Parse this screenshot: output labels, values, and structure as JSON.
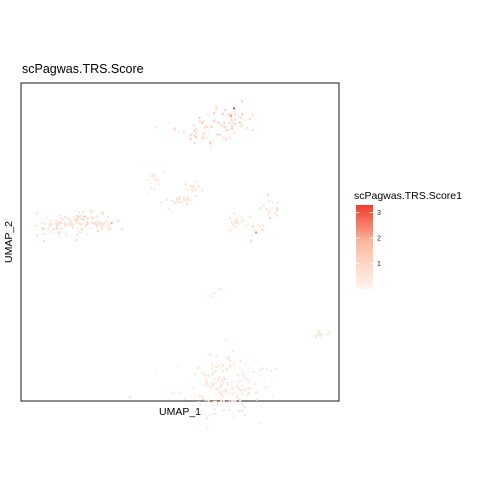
{
  "chart_data": {
    "type": "scatter",
    "title": "scPagwas.TRS.Score",
    "xlabel": "UMAP_1",
    "ylabel": "UMAP_2",
    "xlim": [
      -10,
      10
    ],
    "ylim": [
      -10,
      10
    ],
    "grid": false,
    "legend": {
      "title": "scPagwas.TRS.Score1",
      "position": "right",
      "ticks": [
        1,
        2,
        3
      ],
      "range": [
        0,
        3.3
      ],
      "color_low": "#fff5f0",
      "color_high": "#ef3b2c"
    },
    "clusters": [
      {
        "name": "c1",
        "center": [
          -6.2,
          1.3
        ],
        "spread": [
          0.9,
          0.35
        ],
        "n": 70,
        "score": [
          0.2,
          1.2
        ]
      },
      {
        "name": "c2",
        "center": [
          -7.9,
          0.9
        ],
        "spread": [
          0.7,
          0.35
        ],
        "n": 45,
        "score": [
          0.2,
          1.0
        ]
      },
      {
        "name": "c3",
        "center": [
          -4.8,
          1.1
        ],
        "spread": [
          0.4,
          0.25
        ],
        "n": 18,
        "score": [
          0.2,
          0.9
        ]
      },
      {
        "name": "c4",
        "center": [
          1.3,
          6.8
        ],
        "spread": [
          0.8,
          0.35
        ],
        "n": 35,
        "score": [
          0.2,
          1.4
        ]
      },
      {
        "name": "c5",
        "center": [
          3.0,
          7.6
        ],
        "spread": [
          0.9,
          0.45
        ],
        "n": 55,
        "score": [
          0.2,
          1.6
        ]
      },
      {
        "name": "c6",
        "center": [
          -1.9,
          3.9
        ],
        "spread": [
          0.4,
          0.3
        ],
        "n": 16,
        "score": [
          0.1,
          0.8
        ]
      },
      {
        "name": "c7",
        "center": [
          -0.3,
          2.5
        ],
        "spread": [
          0.4,
          0.35
        ],
        "n": 22,
        "score": [
          0.2,
          0.9
        ]
      },
      {
        "name": "c8",
        "center": [
          0.8,
          3.3
        ],
        "spread": [
          0.35,
          0.3
        ],
        "n": 16,
        "score": [
          0.2,
          0.9
        ]
      },
      {
        "name": "c9",
        "center": [
          3.6,
          1.2
        ],
        "spread": [
          0.5,
          0.3
        ],
        "n": 18,
        "score": [
          0.2,
          1.0
        ]
      },
      {
        "name": "c10",
        "center": [
          5.6,
          2.1
        ],
        "spread": [
          0.35,
          0.4
        ],
        "n": 16,
        "score": [
          0.2,
          1.1
        ]
      },
      {
        "name": "c11",
        "center": [
          4.8,
          0.8
        ],
        "spread": [
          0.3,
          0.25
        ],
        "n": 8,
        "score": [
          0.3,
          1.5
        ]
      },
      {
        "name": "c12",
        "center": [
          2.2,
          -3.1
        ],
        "spread": [
          0.25,
          0.2
        ],
        "n": 6,
        "score": [
          0.2,
          0.7
        ]
      },
      {
        "name": "c13",
        "center": [
          2.5,
          -9.0
        ],
        "spread": [
          1.4,
          0.9
        ],
        "n": 170,
        "score": [
          0.1,
          0.8
        ]
      },
      {
        "name": "c14",
        "center": [
          8.9,
          -5.9
        ],
        "spread": [
          0.3,
          0.15
        ],
        "n": 8,
        "score": [
          0.3,
          1.0
        ]
      },
      {
        "name": "c15",
        "center": [
          5.5,
          -8.2
        ],
        "spread": [
          0.3,
          0.2
        ],
        "n": 6,
        "score": [
          0.1,
          0.6
        ]
      }
    ],
    "hotspots": [
      {
        "x": 3.4,
        "y": 8.4,
        "score": 3.2
      },
      {
        "x": -4.3,
        "y": 1.2,
        "score": 2.0
      },
      {
        "x": 4.8,
        "y": 0.6,
        "score": 2.4
      },
      {
        "x": 3.2,
        "y": 7.9,
        "score": 2.2
      },
      {
        "x": -6.0,
        "y": 1.6,
        "score": 1.8
      },
      {
        "x": 1.0,
        "y": 6.6,
        "score": 1.6
      }
    ]
  }
}
